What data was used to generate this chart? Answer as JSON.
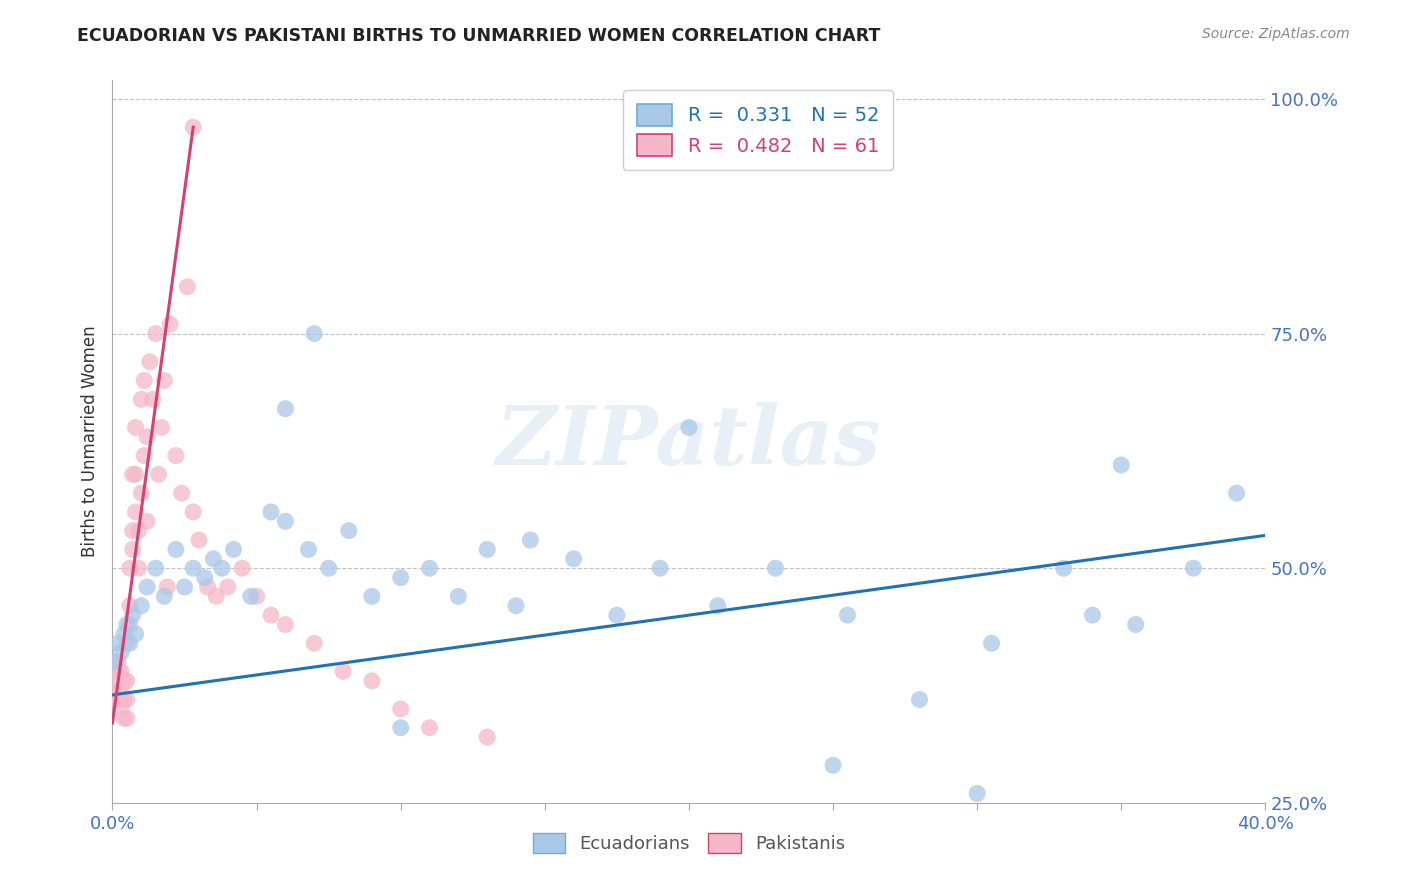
{
  "title": "ECUADORIAN VS PAKISTANI BIRTHS TO UNMARRIED WOMEN CORRELATION CHART",
  "source": "Source: ZipAtlas.com",
  "ylabel": "Births to Unmarried Women",
  "watermark": "ZIPatlas",
  "x_min": 0.0,
  "x_max": 0.4,
  "y_min": 0.3,
  "y_max": 1.02,
  "y_tick_values": [
    0.25,
    0.5,
    0.75,
    1.0
  ],
  "y_tick_labels": [
    "25.0%",
    "50.0%",
    "75.0%",
    "100.0%"
  ],
  "x_tick_positions": [
    0.0,
    0.05,
    0.1,
    0.15,
    0.2,
    0.25,
    0.3,
    0.35,
    0.4
  ],
  "blue_color": "#a8c8e8",
  "pink_color": "#f4b8c8",
  "blue_line_color": "#2171b5",
  "pink_line_color": "#d44070",
  "axis_label_color": "#4472c4",
  "title_color": "#222222",
  "grid_color": "#bbbbbb",
  "background_color": "#ffffff",
  "blue_scatter_x": [
    0.001,
    0.002,
    0.003,
    0.004,
    0.005,
    0.006,
    0.007,
    0.008,
    0.01,
    0.012,
    0.015,
    0.018,
    0.022,
    0.025,
    0.028,
    0.032,
    0.035,
    0.038,
    0.042,
    0.048,
    0.055,
    0.06,
    0.068,
    0.075,
    0.082,
    0.09,
    0.1,
    0.11,
    0.12,
    0.13,
    0.145,
    0.16,
    0.175,
    0.19,
    0.21,
    0.23,
    0.255,
    0.28,
    0.305,
    0.33,
    0.355,
    0.375,
    0.06,
    0.1,
    0.2,
    0.35,
    0.39,
    0.25,
    0.3,
    0.34,
    0.07,
    0.14
  ],
  "blue_scatter_y": [
    0.4,
    0.42,
    0.41,
    0.43,
    0.44,
    0.42,
    0.45,
    0.43,
    0.46,
    0.48,
    0.5,
    0.47,
    0.52,
    0.48,
    0.5,
    0.49,
    0.51,
    0.5,
    0.52,
    0.47,
    0.56,
    0.55,
    0.52,
    0.5,
    0.54,
    0.47,
    0.49,
    0.5,
    0.47,
    0.52,
    0.53,
    0.51,
    0.45,
    0.5,
    0.46,
    0.5,
    0.45,
    0.36,
    0.42,
    0.5,
    0.44,
    0.5,
    0.67,
    0.33,
    0.65,
    0.61,
    0.58,
    0.29,
    0.26,
    0.45,
    0.75,
    0.46
  ],
  "pink_scatter_x": [
    0.001,
    0.001,
    0.001,
    0.002,
    0.002,
    0.002,
    0.002,
    0.003,
    0.003,
    0.003,
    0.004,
    0.004,
    0.004,
    0.005,
    0.005,
    0.005,
    0.005,
    0.006,
    0.006,
    0.006,
    0.007,
    0.007,
    0.007,
    0.008,
    0.008,
    0.008,
    0.009,
    0.009,
    0.01,
    0.01,
    0.011,
    0.011,
    0.012,
    0.012,
    0.013,
    0.014,
    0.015,
    0.016,
    0.017,
    0.018,
    0.019,
    0.02,
    0.022,
    0.024,
    0.026,
    0.028,
    0.03,
    0.033,
    0.036,
    0.04,
    0.045,
    0.05,
    0.055,
    0.06,
    0.07,
    0.08,
    0.09,
    0.1,
    0.11,
    0.13,
    0.028
  ],
  "pink_scatter_y": [
    0.36,
    0.38,
    0.4,
    0.36,
    0.37,
    0.39,
    0.4,
    0.35,
    0.37,
    0.39,
    0.34,
    0.36,
    0.38,
    0.34,
    0.36,
    0.38,
    0.42,
    0.44,
    0.46,
    0.5,
    0.52,
    0.54,
    0.6,
    0.56,
    0.6,
    0.65,
    0.5,
    0.54,
    0.58,
    0.68,
    0.62,
    0.7,
    0.55,
    0.64,
    0.72,
    0.68,
    0.75,
    0.6,
    0.65,
    0.7,
    0.48,
    0.76,
    0.62,
    0.58,
    0.8,
    0.56,
    0.53,
    0.48,
    0.47,
    0.48,
    0.5,
    0.47,
    0.45,
    0.44,
    0.42,
    0.39,
    0.38,
    0.35,
    0.33,
    0.32,
    0.97
  ],
  "blue_line_x": [
    0.0,
    0.4
  ],
  "blue_line_y": [
    0.365,
    0.535
  ],
  "pink_line_x": [
    0.0,
    0.028
  ],
  "pink_line_y": [
    0.335,
    0.97
  ]
}
